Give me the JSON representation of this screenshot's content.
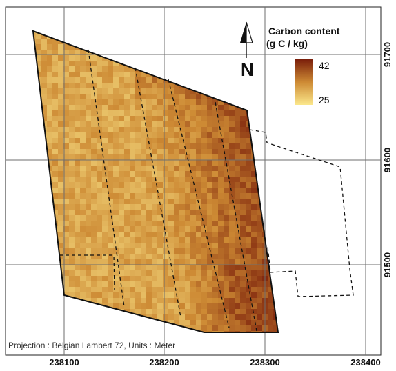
{
  "legend": {
    "title_line1": "Carbon content",
    "title_line2": "(g C / kg)",
    "max_label": "42",
    "min_label": "25",
    "color_high": "#7a1e0a",
    "color_mid": "#cd8a34",
    "color_low": "#fbe78b"
  },
  "x_ticks": [
    "238100",
    "238200",
    "238300",
    "238400"
  ],
  "y_ticks": [
    "91700",
    "91600",
    "91500"
  ],
  "projection_note": "Projection : Belgian Lambert 72, Units : Meter",
  "north_arrow": {
    "label": "N",
    "icon": "north-arrow-icon"
  }
}
